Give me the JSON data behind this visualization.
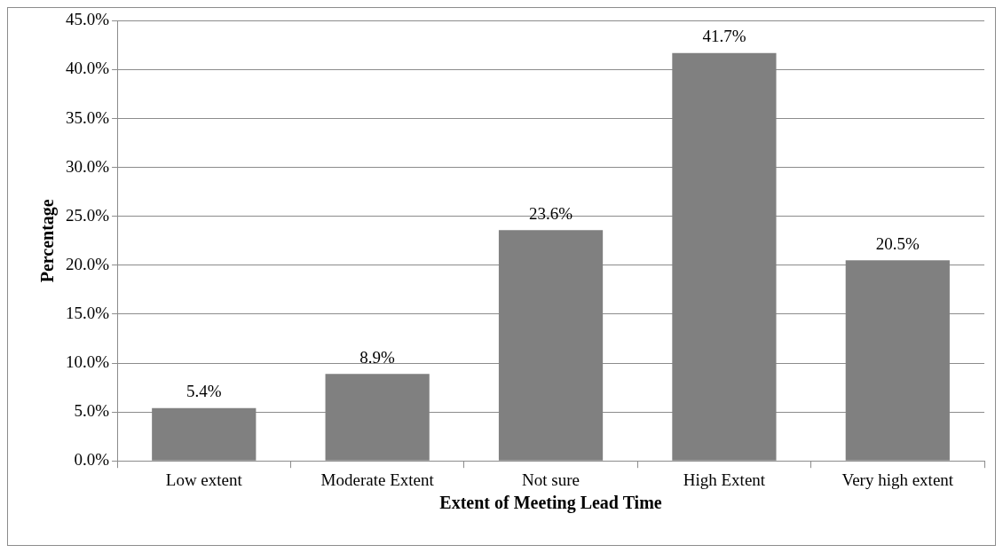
{
  "chart_data": {
    "type": "bar",
    "xlabel": "Extent of Meeting Lead Time",
    "ylabel": "Percentage",
    "categories": [
      "Low extent",
      "Moderate Extent",
      "Not sure",
      "High Extent",
      "Very high extent"
    ],
    "values": [
      5.4,
      8.9,
      23.6,
      41.7,
      20.5
    ],
    "value_labels": [
      "5.4%",
      "8.9%",
      "23.6%",
      "41.7%",
      "20.5%"
    ],
    "color": "#808080",
    "ylim": [
      0,
      45
    ],
    "yticks": [
      {
        "value": 0,
        "label": "0.0%"
      },
      {
        "value": 5,
        "label": "5.0%"
      },
      {
        "value": 10,
        "label": "10.0%"
      },
      {
        "value": 15,
        "label": "15.0%"
      },
      {
        "value": 20,
        "label": "20.0%"
      },
      {
        "value": 25,
        "label": "25.0%"
      },
      {
        "value": 30,
        "label": "30.0%"
      },
      {
        "value": 35,
        "label": "35.0%"
      },
      {
        "value": 40,
        "label": "40.0%"
      },
      {
        "value": 45,
        "label": "45.0%"
      }
    ],
    "grid": "y",
    "legend": false
  }
}
